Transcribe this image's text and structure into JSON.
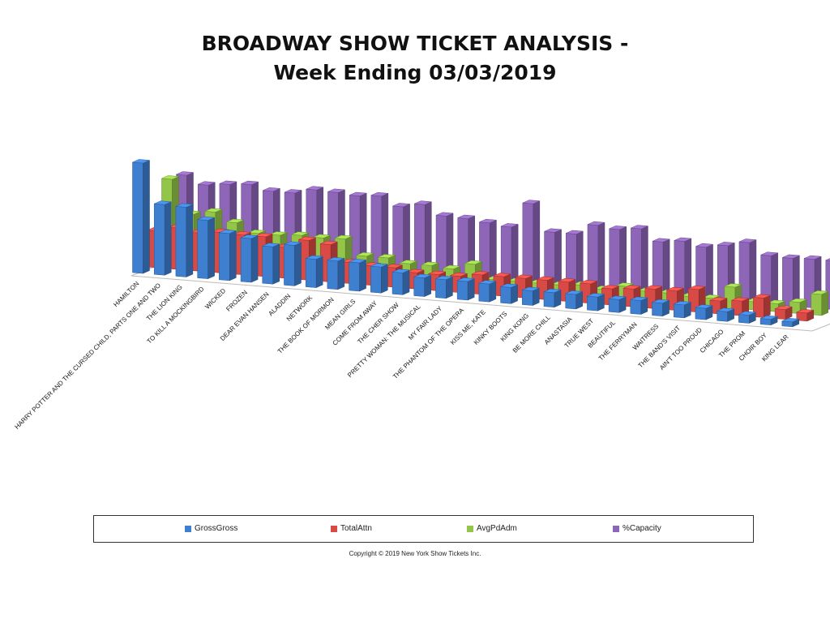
{
  "title_line1": "BROADWAY  SHOW TICKET ANALYSIS -",
  "title_line2": "Week Ending 03/03/2019",
  "copyright": "Copyright © 2019 New York Show Tickets Inc.",
  "chart_data": {
    "type": "bar",
    "title": "BROADWAY  SHOW TICKET ANALYSIS - Week Ending 03/03/2019",
    "categories": [
      "HAMILTON",
      "HARRY POTTER AND THE CURSED CHILD, PARTS ONE AND TWO",
      "THE LION KING",
      "TO KILL A MOCKINGBIRD",
      "WICKED",
      "FROZEN",
      "DEAR EVAN HANSEN",
      "ALADDIN",
      "NETWORK",
      "THE BOOK OF MORMON",
      "MEAN GIRLS",
      "COME FROM AWAY",
      "THE CHER SHOW",
      "PRETTY WOMAN: THE MUSICAL",
      "MY FAIR LADY",
      "THE PHANTOM OF THE OPERA",
      "KISS ME, KATE",
      "KINKY BOOTS",
      "KING KONG",
      "BE MORE CHILL",
      "ANASTASIA",
      "TRUE WEST",
      "BEAUTIFUL",
      "THE FERRYMAN",
      "WAITRESS",
      "THE BAND'S VISIT",
      "AIN'T TOO PROUD",
      "CHICAGO",
      "THE PROM",
      "CHOIR BOY",
      "KING LEAR"
    ],
    "series": [
      {
        "name": "GrossGross",
        "color": "#3f7fd0",
        "values": [
          136,
          87,
          86,
          72,
          58,
          54,
          46,
          50,
          35,
          35,
          35,
          32,
          27,
          23,
          23,
          23,
          22,
          20,
          18,
          18,
          18,
          17,
          16,
          17,
          16,
          16,
          14,
          12,
          10,
          7,
          6
        ]
      },
      {
        "name": "TotalAttn",
        "color": "#d84a45",
        "values": [
          45,
          51,
          47,
          50,
          49,
          49,
          38,
          49,
          46,
          26,
          24,
          24,
          20,
          20,
          20,
          24,
          24,
          24,
          24,
          24,
          24,
          20,
          22,
          24,
          24,
          28,
          16,
          18,
          24,
          12,
          10
        ]
      },
      {
        "name": "AvgPdAdm",
        "color": "#93c548",
        "values": [
          102,
          61,
          66,
          55,
          44,
          44,
          46,
          45,
          46,
          27,
          27,
          22,
          22,
          20,
          28,
          11,
          11,
          11,
          11,
          13,
          10,
          16,
          12,
          12,
          10,
          10,
          26,
          10,
          10,
          14,
          26
        ]
      },
      {
        "name": "%Capacity",
        "color": "#8e66b8",
        "values": [
          100,
          90,
          93,
          95,
          89,
          89,
          95,
          94,
          92,
          94,
          83,
          88,
          76,
          75,
          72,
          69,
          100,
          67,
          67,
          80,
          77,
          80,
          66,
          69,
          64,
          68,
          74,
          60,
          59,
          60,
          60
        ]
      }
    ],
    "legend_position": "bottom",
    "grid": false
  }
}
